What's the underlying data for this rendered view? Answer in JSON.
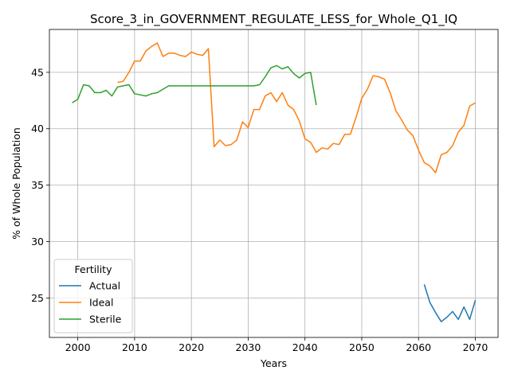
{
  "chart_data": {
    "type": "line",
    "title": "Score_3_in_GOVERNMENT_REGULATE_LESS_for_Whole_Q1_IQ",
    "xlabel": "Years",
    "ylabel": "% of Whole Population",
    "xlim": [
      1995,
      2074
    ],
    "ylim": [
      21.5,
      48.8
    ],
    "xticks": [
      2000,
      2010,
      2020,
      2030,
      2040,
      2050,
      2060,
      2070
    ],
    "yticks": [
      25,
      30,
      35,
      40,
      45
    ],
    "grid": true,
    "legend": {
      "title": "Fertility",
      "placement": "lower-left"
    },
    "series": [
      {
        "name": "Actual",
        "color": "#1f77b4",
        "x": [
          2061,
          2062,
          2063,
          2064,
          2065,
          2066,
          2067,
          2068,
          2069,
          2070
        ],
        "y": [
          26.2,
          24.6,
          23.7,
          22.9,
          23.3,
          23.8,
          23.1,
          24.2,
          23.1,
          24.8
        ]
      },
      {
        "name": "Ideal",
        "color": "#ff7f0e",
        "x": [
          2007,
          2008,
          2009,
          2010,
          2011,
          2012,
          2013,
          2014,
          2015,
          2016,
          2017,
          2018,
          2019,
          2020,
          2021,
          2022,
          2023,
          2024,
          2025,
          2026,
          2027,
          2028,
          2029,
          2030,
          2031,
          2032,
          2033,
          2034,
          2035,
          2036,
          2037,
          2038,
          2039,
          2040,
          2041,
          2042,
          2043,
          2044,
          2045,
          2046,
          2047,
          2048,
          2049,
          2050,
          2051,
          2052,
          2053,
          2054,
          2055,
          2056,
          2057,
          2058,
          2059,
          2060,
          2061,
          2062,
          2063,
          2064,
          2065,
          2066,
          2067,
          2068,
          2069,
          2070
        ],
        "y": [
          44.1,
          44.2,
          45.0,
          46.0,
          46.0,
          46.9,
          47.3,
          47.6,
          46.4,
          46.7,
          46.7,
          46.5,
          46.4,
          46.8,
          46.6,
          46.5,
          47.1,
          38.4,
          39.0,
          38.5,
          38.6,
          39.0,
          40.6,
          40.1,
          41.7,
          41.7,
          42.9,
          43.2,
          42.4,
          43.2,
          42.1,
          41.7,
          40.7,
          39.1,
          38.8,
          37.9,
          38.3,
          38.2,
          38.7,
          38.6,
          39.5,
          39.5,
          41.0,
          42.7,
          43.5,
          44.7,
          44.6,
          44.4,
          43.2,
          41.6,
          40.8,
          39.9,
          39.4,
          38.1,
          37.0,
          36.7,
          36.1,
          37.7,
          37.9,
          38.5,
          39.7,
          40.3,
          42.0,
          42.3
        ]
      },
      {
        "name": "Sterile",
        "color": "#2ca02c",
        "x": [
          1999,
          2000,
          2001,
          2002,
          2003,
          2004,
          2005,
          2006,
          2007,
          2008,
          2009,
          2010,
          2011,
          2012,
          2013,
          2014,
          2015,
          2016,
          2017,
          2018,
          2019,
          2020,
          2021,
          2022,
          2023,
          2024,
          2025,
          2026,
          2027,
          2028,
          2029,
          2030,
          2031,
          2032,
          2033,
          2034,
          2035,
          2036,
          2037,
          2038,
          2039,
          2040,
          2041,
          2042
        ],
        "y": [
          42.3,
          42.6,
          43.9,
          43.8,
          43.2,
          43.2,
          43.4,
          42.9,
          43.7,
          43.8,
          43.9,
          43.1,
          43.0,
          42.9,
          43.1,
          43.2,
          43.5,
          43.8,
          43.8,
          43.8,
          43.8,
          43.8,
          43.8,
          43.8,
          43.8,
          43.8,
          43.8,
          43.8,
          43.8,
          43.8,
          43.8,
          43.8,
          43.8,
          43.9,
          44.6,
          45.4,
          45.6,
          45.3,
          45.5,
          44.9,
          44.5,
          44.9,
          45.0,
          42.1
        ]
      }
    ]
  }
}
